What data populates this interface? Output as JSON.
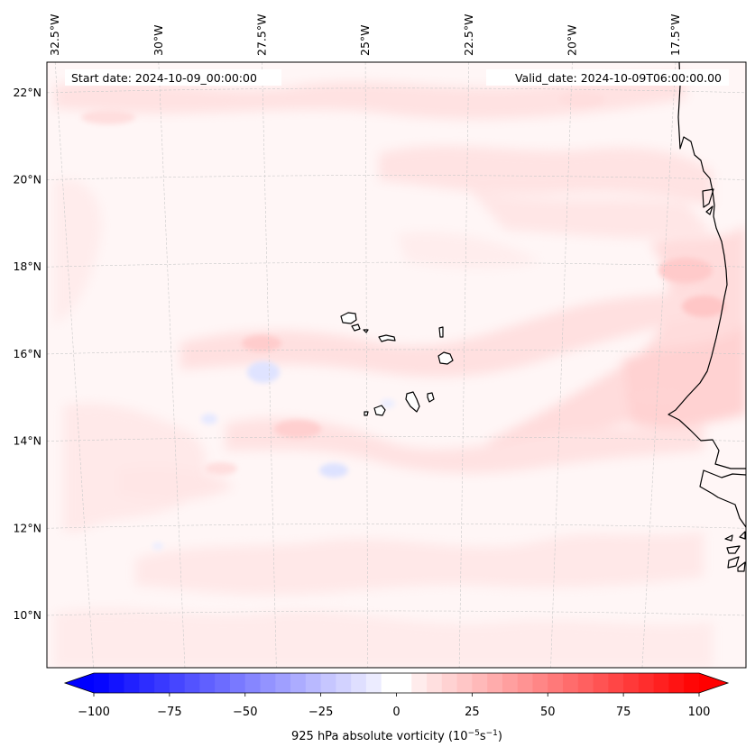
{
  "map": {
    "start_date_text": "Start date: 2024-10-09_00:00:00",
    "valid_date_text": "Valid_date: 2024-10-09T06:00:00.00",
    "lon_labels": [
      "32.5°W",
      "30°W",
      "27.5°W",
      "25°W",
      "22.5°W",
      "20°W",
      "17.5°W"
    ],
    "lat_labels": [
      "22°N",
      "20°N",
      "18°N",
      "16°N",
      "14°N",
      "12°N",
      "10°N"
    ],
    "lon_values": [
      -32.5,
      -30,
      -27.5,
      -25,
      -22.5,
      -20,
      -17.5
    ],
    "lat_values": [
      22,
      20,
      18,
      16,
      14,
      12,
      10
    ],
    "extent": {
      "lon_min": -32.7,
      "lon_max": -15.8,
      "lat_min": 8.8,
      "lat_max": 22.7
    }
  },
  "colorbar": {
    "label_prefix": "925 hPa absolute vorticity (10",
    "label_exp1": "−5",
    "label_mid": "s",
    "label_exp2": "−1",
    "label_suffix": ")",
    "ticks": [
      "−100",
      "−75",
      "−50",
      "−25",
      "0",
      "25",
      "50",
      "75",
      "100"
    ],
    "tick_values": [
      -100,
      -75,
      -50,
      -25,
      0,
      25,
      50,
      75,
      100
    ],
    "min": -100,
    "max": 100,
    "step": 5,
    "colors": {
      "negative": "#0000ff",
      "positive": "#ff0000",
      "neutral": "#ffffff"
    }
  }
}
